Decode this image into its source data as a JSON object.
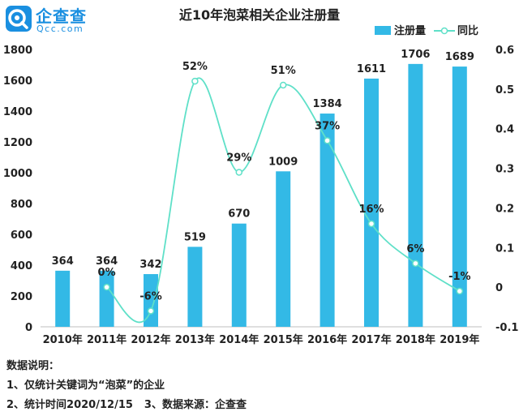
{
  "logo": {
    "text_cn": "企查查",
    "text_en": "Qcc.com",
    "icon": "qcc-logo-icon"
  },
  "chart_data": {
    "type": "bar",
    "title": "近10年泡菜相关企业注册量",
    "categories": [
      "2010年",
      "2011年",
      "2012年",
      "2013年",
      "2014年",
      "2015年",
      "2016年",
      "2017年",
      "2018年",
      "2019年"
    ],
    "series": [
      {
        "name": "注册量",
        "type": "bar",
        "axis": "left",
        "color": "#33b9e6",
        "values": [
          364,
          364,
          342,
          519,
          670,
          1009,
          1384,
          1611,
          1706,
          1689
        ],
        "labels": [
          "364",
          "364",
          "342",
          "519",
          "670",
          "1009",
          "1384",
          "1611",
          "1706",
          "1689"
        ]
      },
      {
        "name": "同比",
        "type": "line",
        "axis": "right",
        "smooth": true,
        "color": "#5fe0c8",
        "values": [
          null,
          0,
          -0.06,
          0.52,
          0.29,
          0.51,
          0.37,
          0.16,
          0.06,
          -0.01
        ],
        "labels": [
          "",
          "0%",
          "-6%",
          "52%",
          "29%",
          "51%",
          "37%",
          "16%",
          "6%",
          "-1%"
        ]
      }
    ],
    "y_left": {
      "min": 0,
      "max": 1800,
      "ticks": [
        "0",
        "200",
        "400",
        "600",
        "800",
        "1000",
        "1200",
        "1400",
        "1600",
        "1800"
      ]
    },
    "y_right": {
      "min": -0.1,
      "max": 0.6,
      "ticks": [
        "-0.1",
        "0",
        "0.1",
        "0.2",
        "0.3",
        "0.4",
        "0.5",
        "0.6"
      ]
    },
    "grid": false,
    "legend": "top-right"
  },
  "notes": {
    "title": "数据说明：",
    "line1": "1、仅统计关键词为“泡菜”的企业",
    "line2a": "2、统计时间2020/12/15",
    "line2b": "3、数据来源：企查查"
  }
}
